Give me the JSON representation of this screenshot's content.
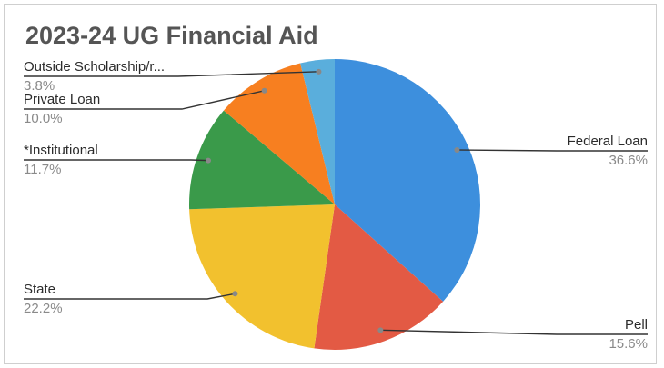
{
  "chart_data": {
    "type": "pie",
    "title": "2023-24 UG Financial Aid",
    "slices": [
      {
        "label": "Federal Loan",
        "value": 36.6,
        "pct_text": "36.6%",
        "color": "#3d8fdd",
        "side": "right"
      },
      {
        "label": "Pell",
        "value": 15.6,
        "pct_text": "15.6%",
        "color": "#e35a44",
        "side": "right"
      },
      {
        "label": "State",
        "value": 22.2,
        "pct_text": "22.2%",
        "color": "#f2c12e",
        "side": "left"
      },
      {
        "label": "*Institutional",
        "value": 11.7,
        "pct_text": "11.7%",
        "color": "#3a9a4a",
        "side": "left"
      },
      {
        "label": "Private Loan",
        "value": 10.0,
        "pct_text": "10.0%",
        "color": "#f77f20",
        "side": "left"
      },
      {
        "label": "Outside Scholarship/r...",
        "value": 3.8,
        "pct_text": "3.8%",
        "color": "#5aaedc",
        "side": "left"
      }
    ],
    "start_angle_deg": 0,
    "direction": "clockwise",
    "legend": "none"
  }
}
